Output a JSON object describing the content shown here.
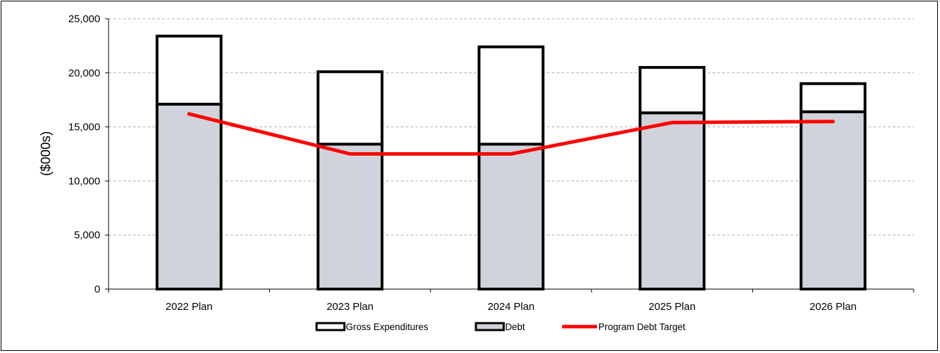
{
  "chart_data": {
    "type": "bar",
    "stacked": true,
    "categories": [
      "2022 Plan",
      "2023 Plan",
      "2024 Plan",
      "2025 Plan",
      "2026 Plan"
    ],
    "series": [
      {
        "name": "Debt",
        "kind": "bar",
        "values": [
          17100,
          13400,
          13400,
          16300,
          16400
        ],
        "color": "#d0d3db"
      },
      {
        "name": "Gross Expenditures",
        "kind": "bar",
        "values": [
          6300,
          6700,
          9000,
          4200,
          2600
        ],
        "color": "#ffffff"
      },
      {
        "name": "Program Debt Target",
        "kind": "line",
        "values": [
          16200,
          12500,
          12500,
          15400,
          15500
        ],
        "color": "#ff0000"
      }
    ],
    "legend_order": [
      "Gross Expenditures",
      "Debt",
      "Program Debt Target"
    ],
    "legend_position": "bottom",
    "title": "",
    "xlabel": "",
    "ylabel": "($000s)",
    "ylim": [
      0,
      25000
    ],
    "yticks": [
      0,
      5000,
      10000,
      15000,
      20000,
      25000
    ],
    "ytick_labels": [
      "0",
      "5,000",
      "10,000",
      "15,000",
      "20,000",
      "25,000"
    ],
    "grid": "horizontal dashed"
  }
}
